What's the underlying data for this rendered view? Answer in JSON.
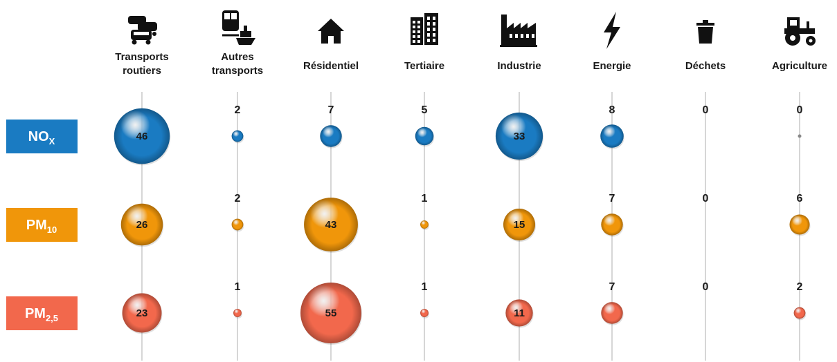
{
  "chart_data": {
    "type": "bubble-matrix",
    "categories": [
      {
        "lines": [
          "Transports",
          "routiers"
        ],
        "icon": "cars-icon"
      },
      {
        "lines": [
          "Autres",
          "transports"
        ],
        "icon": "train-ship-icon"
      },
      {
        "lines": [
          "Résidentiel"
        ],
        "icon": "house-icon"
      },
      {
        "lines": [
          "Tertiaire"
        ],
        "icon": "office-building-icon"
      },
      {
        "lines": [
          "Industrie"
        ],
        "icon": "factory-icon"
      },
      {
        "lines": [
          "Energie"
        ],
        "icon": "lightning-icon"
      },
      {
        "lines": [
          "Déchets"
        ],
        "icon": "trash-icon"
      },
      {
        "lines": [
          "Agriculture"
        ],
        "icon": "tractor-icon"
      }
    ],
    "series": [
      {
        "main": "NO",
        "sub": "X",
        "color": "#1a7bc2",
        "values": [
          46,
          2,
          7,
          5,
          33,
          8,
          0,
          0
        ]
      },
      {
        "main": "PM",
        "sub": "10",
        "color": "#f0960a",
        "values": [
          26,
          2,
          43,
          1,
          15,
          7,
          0,
          6
        ]
      },
      {
        "main": "PM",
        "sub": "2,5",
        "color": "#f2684c",
        "values": [
          23,
          1,
          55,
          1,
          11,
          7,
          0,
          2
        ]
      }
    ],
    "inside_label_threshold": 10
  }
}
